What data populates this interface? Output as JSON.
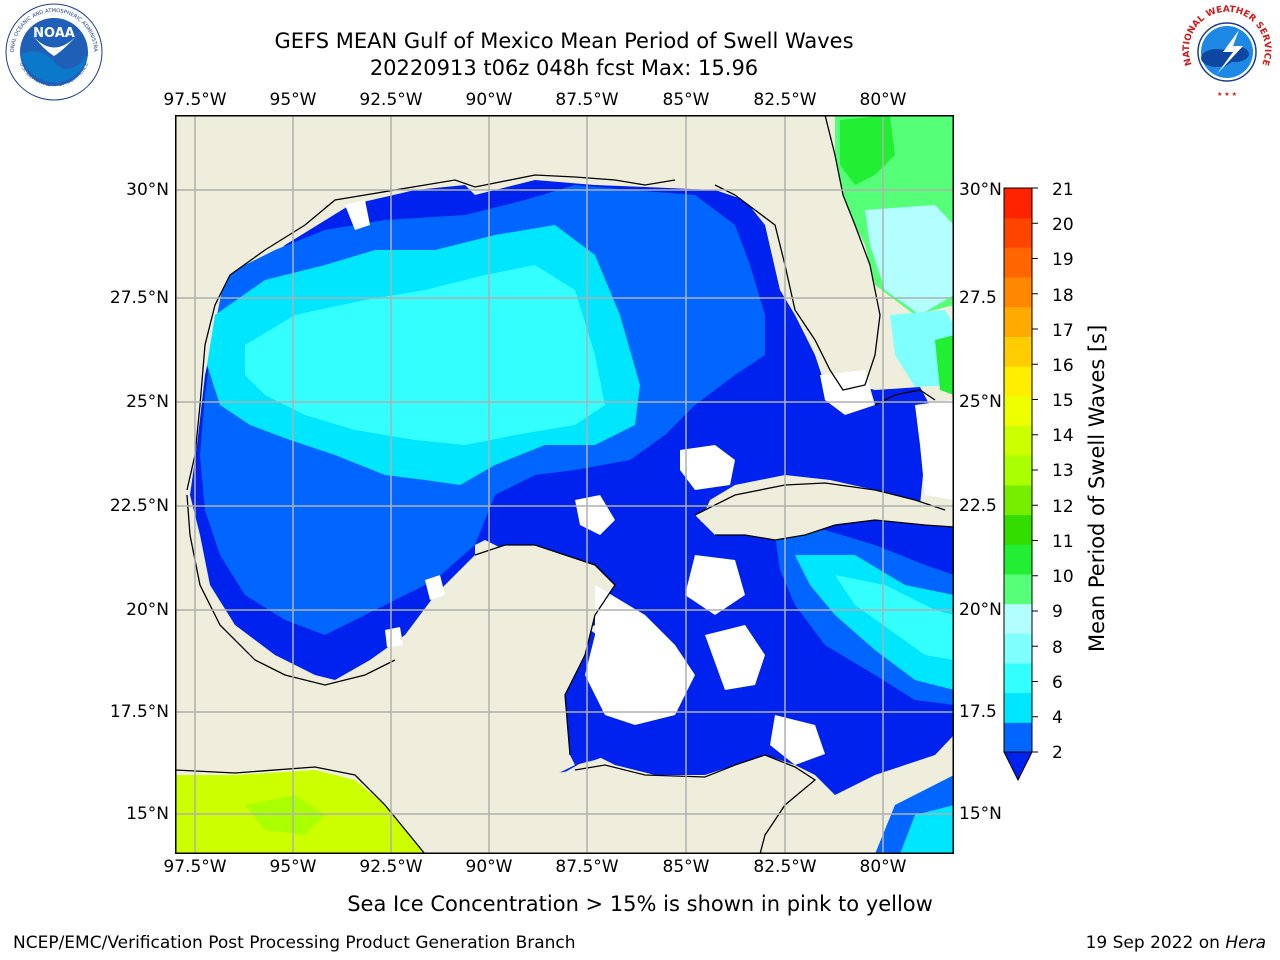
{
  "title_line1": "GEFS MEAN Gulf of Mexico Mean Period of Swell Waves",
  "title_line2": "20220913 t06z 048h fcst   Max: 15.96",
  "longitude_ticks": [
    "97.5°W",
    "95°W",
    "92.5°W",
    "90°W",
    "87.5°W",
    "85°W",
    "82.5°W",
    "80°W"
  ],
  "latitude_ticks_left": [
    "30°N",
    "27.5°N",
    "25°N",
    "22.5°N",
    "20°N",
    "17.5°N",
    "15°N"
  ],
  "latitude_ticks_right": [
    "30°N",
    "27.5",
    "25°N",
    "22.5",
    "20°N",
    "17.5",
    "15°N"
  ],
  "colorbar": {
    "label": "Mean Period of Swell Waves [s]",
    "ticks": [
      "21",
      "20",
      "19",
      "18",
      "17",
      "16",
      "15",
      "14",
      "13",
      "12",
      "11",
      "10",
      "9",
      "8",
      "6",
      "4",
      "2"
    ],
    "colors": [
      "#0066ff",
      "#00e6ff",
      "#33ffff",
      "#80ffff",
      "#b3ffff",
      "#55ff77",
      "#22ee33",
      "#33dd00",
      "#77ee00",
      "#aaff00",
      "#ccff00",
      "#eeff00",
      "#ffee00",
      "#ffcc00",
      "#ffaa00",
      "#ff8800",
      "#ff6600",
      "#ff4400",
      "#ff2200"
    ],
    "under_color": "#0022ee"
  },
  "colors": {
    "land": "#efeedd",
    "grid": "#b0b0b0"
  },
  "note": "Sea Ice Concentration > 15% is shown in pink to yellow",
  "footer_left": "NCEP/EMC/Verification Post Processing Product Generation Branch",
  "footer_right_date": "19 Sep 2022 on ",
  "footer_right_host": "Hera",
  "logos": {
    "noaa_text": "NOAA",
    "noaa_ring": "NATIONAL OCEANIC AND ATMOSPHERIC ADMINISTRATION",
    "noaa_ring_bottom": "U.S. DEPARTMENT OF COMMERCE",
    "nws_ring": "NATIONAL WEATHER SERVICE"
  }
}
